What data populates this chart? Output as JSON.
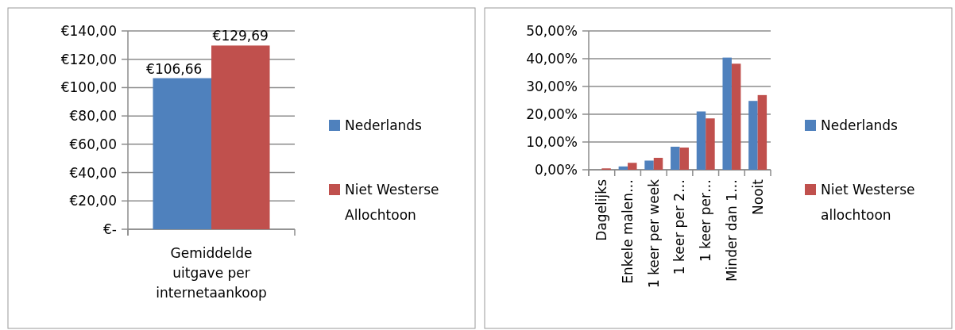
{
  "chart_data": [
    {
      "type": "bar",
      "categories": [
        "Gemiddelde uitgave per internetaankoop"
      ],
      "series": [
        {
          "name": "Nederlands",
          "color": "#4f81bd",
          "values": [
            106.66
          ],
          "value_labels": [
            "€106,66"
          ]
        },
        {
          "name": "Niet Westerse Allochtoon",
          "color": "#c0504d",
          "values": [
            129.69
          ],
          "value_labels": [
            "€129,69"
          ]
        }
      ],
      "ylim": [
        0,
        140
      ],
      "yticks": [
        {
          "value": 0,
          "label": "€-"
        },
        {
          "value": 20,
          "label": "€20,00"
        },
        {
          "value": 40,
          "label": "€40,00"
        },
        {
          "value": 60,
          "label": "€60,00"
        },
        {
          "value": 80,
          "label": "€80,00"
        },
        {
          "value": 100,
          "label": "€100,00"
        },
        {
          "value": 120,
          "label": "€120,00"
        },
        {
          "value": 140,
          "label": "€140,00"
        }
      ],
      "grid": "y",
      "legend": "right"
    },
    {
      "type": "bar",
      "categories": [
        "Dagelijks",
        "Enkele malen…",
        "1 keer per week",
        "1 keer per 2…",
        "1 keer per…",
        "Minder dan 1…",
        "Nooit"
      ],
      "series": [
        {
          "name": "Nederlands",
          "color": "#4f81bd",
          "values": [
            0,
            1.2,
            3.3,
            8.3,
            21.0,
            40.4,
            24.8
          ]
        },
        {
          "name": "Niet Westerse allochtoon",
          "color": "#c0504d",
          "values": [
            0.5,
            2.5,
            4.3,
            8.0,
            18.5,
            38.2,
            26.9
          ]
        }
      ],
      "ylim": [
        0,
        50
      ],
      "yticks": [
        {
          "value": 0,
          "label": "0,00%"
        },
        {
          "value": 10,
          "label": "10,00%"
        },
        {
          "value": 20,
          "label": "20,00%"
        },
        {
          "value": 30,
          "label": "30,00%"
        },
        {
          "value": 40,
          "label": "40,00%"
        },
        {
          "value": 50,
          "label": "50,00%"
        }
      ],
      "grid": "y",
      "legend": "right"
    }
  ]
}
